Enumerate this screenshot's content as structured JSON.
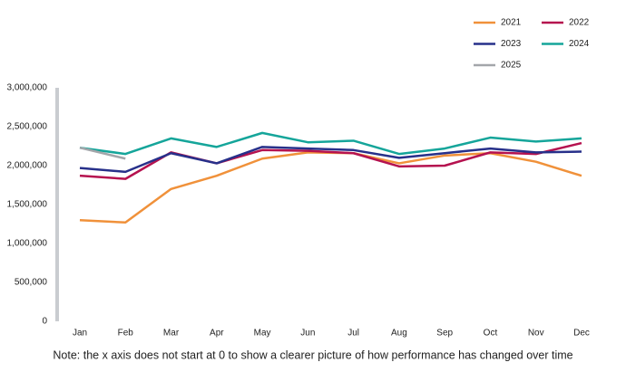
{
  "chart_data": {
    "type": "line",
    "categories": [
      "Jan",
      "Feb",
      "Mar",
      "Apr",
      "May",
      "Jun",
      "Jul",
      "Aug",
      "Sep",
      "Oct",
      "Nov",
      "Dec"
    ],
    "series": [
      {
        "name": "2021",
        "color": "#f0913a",
        "values": [
          1300000,
          1270000,
          1700000,
          1870000,
          2090000,
          2170000,
          2160000,
          2030000,
          2130000,
          2160000,
          2050000,
          1870000
        ]
      },
      {
        "name": "2022",
        "color": "#b5124f",
        "values": [
          1870000,
          1830000,
          2170000,
          2030000,
          2200000,
          2190000,
          2160000,
          1990000,
          2000000,
          2170000,
          2150000,
          2290000
        ]
      },
      {
        "name": "2023",
        "color": "#27308a",
        "values": [
          1970000,
          1920000,
          2160000,
          2030000,
          2240000,
          2220000,
          2200000,
          2100000,
          2160000,
          2220000,
          2170000,
          2180000
        ]
      },
      {
        "name": "2024",
        "color": "#15a59a",
        "values": [
          2230000,
          2150000,
          2350000,
          2240000,
          2420000,
          2300000,
          2320000,
          2150000,
          2220000,
          2360000,
          2310000,
          2350000
        ]
      },
      {
        "name": "2025",
        "color": "#a3a6aa",
        "values": [
          2230000,
          2090000,
          null,
          null,
          null,
          null,
          null,
          null,
          null,
          null,
          null,
          null
        ]
      }
    ],
    "ylim": [
      0,
      3000000
    ],
    "yticks": [
      0,
      {
        "value": 500000,
        "label": "500,000"
      },
      {
        "value": 1000000,
        "label": "1,000,000"
      },
      {
        "value": 1500000,
        "label": "1,500,000"
      },
      {
        "value": 2000000,
        "label": "2,000,000"
      },
      {
        "value": 2500000,
        "label": "2,500,000"
      },
      {
        "value": 3000000,
        "label": "3,000,000"
      }
    ],
    "grid": false,
    "legend": "top-right",
    "note": "Note: the x axis does not start at 0 to show a clearer picture of how performance has changed over time"
  }
}
